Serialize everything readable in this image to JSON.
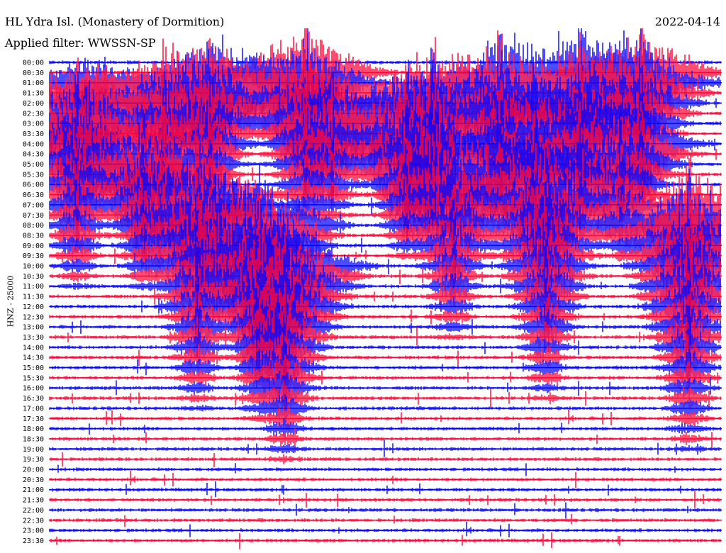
{
  "header": {
    "station": "HL Ydra Isl. (Monastery of Dormition)",
    "date": "2022-04-14",
    "filter": "Applied filter: WWSSN-SP"
  },
  "axis": {
    "ylabel": "HNZ - 25000"
  },
  "colors": {
    "blue": "#0000ff",
    "red": "#ff0033",
    "background": "#ffffff"
  },
  "chart_data": {
    "type": "line",
    "title": "HL Ydra Isl. (Monastery of Dormition)",
    "subtitle": "Applied filter: WWSSN-SP",
    "ylabel": "HNZ - 25000",
    "traces": [
      "00:00",
      "00:30",
      "01:00",
      "01:30",
      "02:00",
      "02:30",
      "03:00",
      "03:30",
      "04:00",
      "04:30",
      "05:00",
      "05:30",
      "06:00",
      "06:30",
      "07:00",
      "07:30",
      "08:00",
      "08:30",
      "09:00",
      "09:30",
      "10:00",
      "10:30",
      "11:00",
      "11:30",
      "12:00",
      "12:30",
      "13:00",
      "13:30",
      "14:00",
      "14:30",
      "15:00",
      "15:30",
      "16:00",
      "16:30",
      "17:00",
      "17:30",
      "18:00",
      "18:30",
      "19:00",
      "19:30",
      "20:00",
      "20:30",
      "21:00",
      "21:30",
      "22:00",
      "22:30",
      "23:00",
      "23:30"
    ],
    "trace_colors": [
      "blue",
      "red"
    ],
    "events": [
      {
        "x": 0.04,
        "trace_start": 5,
        "span": 18,
        "amp": 1.0
      },
      {
        "x": 0.055,
        "trace_start": 2,
        "span": 8,
        "amp": 0.5
      },
      {
        "x": 0.14,
        "trace_start": 9,
        "span": 14,
        "amp": 0.9
      },
      {
        "x": 0.17,
        "trace_start": 3,
        "span": 10,
        "amp": 0.8
      },
      {
        "x": 0.22,
        "trace_start": 13,
        "span": 22,
        "amp": 1.0
      },
      {
        "x": 0.24,
        "trace_start": 2,
        "span": 14,
        "amp": 1.0
      },
      {
        "x": 0.31,
        "trace_start": 16,
        "span": 20,
        "amp": 1.0
      },
      {
        "x": 0.35,
        "trace_start": 20,
        "span": 20,
        "amp": 1.0
      },
      {
        "x": 0.38,
        "trace_start": 1,
        "span": 18,
        "amp": 0.9
      },
      {
        "x": 0.42,
        "trace_start": 5,
        "span": 12,
        "amp": 0.7
      },
      {
        "x": 0.53,
        "trace_start": 6,
        "span": 14,
        "amp": 1.0
      },
      {
        "x": 0.57,
        "trace_start": 3,
        "span": 12,
        "amp": 0.9
      },
      {
        "x": 0.6,
        "trace_start": 10,
        "span": 18,
        "amp": 1.0
      },
      {
        "x": 0.67,
        "trace_start": 2,
        "span": 12,
        "amp": 1.0
      },
      {
        "x": 0.72,
        "trace_start": 6,
        "span": 12,
        "amp": 0.8
      },
      {
        "x": 0.74,
        "trace_start": 12,
        "span": 22,
        "amp": 1.0
      },
      {
        "x": 0.79,
        "trace_start": 2,
        "span": 14,
        "amp": 1.0
      },
      {
        "x": 0.85,
        "trace_start": 8,
        "span": 12,
        "amp": 0.8
      },
      {
        "x": 0.88,
        "trace_start": 1,
        "span": 14,
        "amp": 0.9
      },
      {
        "x": 0.95,
        "trace_start": 15,
        "span": 24,
        "amp": 1.0
      }
    ]
  }
}
